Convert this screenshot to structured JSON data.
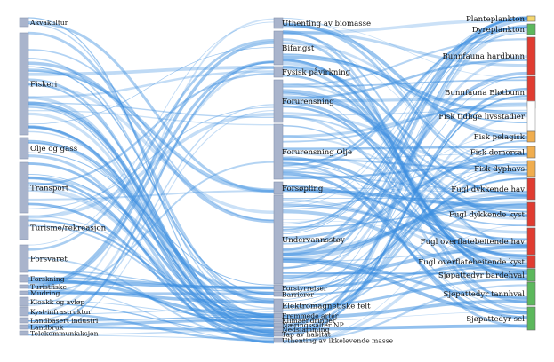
{
  "sources": [
    {
      "label": "Akvakultur",
      "color": "#a9b4cc"
    },
    {
      "label": "Fiskeri",
      "color": "#a9b4cc"
    },
    {
      "label": "Olje og gass",
      "color": "#a9b4cc"
    },
    {
      "label": "Transport",
      "color": "#a9b4cc"
    },
    {
      "label": "Turisme/rekreasjon",
      "color": "#a9b4cc"
    },
    {
      "label": "Forsvaret",
      "color": "#a9b4cc"
    },
    {
      "label": "Forskning",
      "color": "#a9b4cc"
    },
    {
      "label": "Turistfiske",
      "color": "#a9b4cc"
    },
    {
      "label": "Mudring",
      "color": "#a9b4cc"
    },
    {
      "label": "Kloakk og avløp",
      "color": "#a9b4cc"
    },
    {
      "label": "Kyst-infrastruktur",
      "color": "#a9b4cc"
    },
    {
      "label": "Landbasert industri",
      "color": "#a9b4cc"
    },
    {
      "label": "Landbruk",
      "color": "#a9b4cc"
    },
    {
      "label": "Telekommuniaksjon",
      "color": "#a9b4cc"
    }
  ],
  "pressures": [
    {
      "label": "Uthenting av biomasse",
      "color": "#a9b4cc"
    },
    {
      "label": "Bifangst",
      "color": "#a9b4cc"
    },
    {
      "label": "Fysisk påvirkning",
      "color": "#a9b4cc"
    },
    {
      "label": "Forurensning",
      "color": "#a9b4cc"
    },
    {
      "label": "Forurensning Olje",
      "color": "#a9b4cc"
    },
    {
      "label": "Forsøpling",
      "color": "#a9b4cc"
    },
    {
      "label": "Undervannsstøy",
      "color": "#a9b4cc"
    },
    {
      "label": "Forstyrrelser",
      "color": "#a9b4cc"
    },
    {
      "label": "Barrierer",
      "color": "#a9b4cc"
    },
    {
      "label": "Elektromagnetiske felt",
      "color": "#a9b4cc"
    },
    {
      "label": "Fremmede arter",
      "color": "#a9b4cc"
    },
    {
      "label": "Klimaendringer",
      "color": "#a9b4cc"
    },
    {
      "label": "Næringssalter NP",
      "color": "#a9b4cc"
    },
    {
      "label": "Nedslamming",
      "color": "#a9b4cc"
    },
    {
      "label": "Tap av habitat",
      "color": "#a9b4cc"
    },
    {
      "label": "Uthenting av ikkelevende masse",
      "color": "#a9b4cc"
    }
  ],
  "receptors": [
    {
      "label": "Planteplankton",
      "color": "#f5d76e"
    },
    {
      "label": "Dyreplankton",
      "color": "#5cb85c"
    },
    {
      "label": "Bunnfauna hardbunn",
      "color": "#e03c31"
    },
    {
      "label": "Bunnfauna Bløtbunn",
      "color": "#e03c31"
    },
    {
      "label": "Fisk tidlige livsstadier",
      "color": "#ffffff"
    },
    {
      "label": "Fisk pelagisk",
      "color": "#f0ad4e"
    },
    {
      "label": "Fisk demersal",
      "color": "#f0ad4e"
    },
    {
      "label": "Fisk dyphavs",
      "color": "#f0ad4e"
    },
    {
      "label": "Fugl dykkende hav",
      "color": "#e03c31"
    },
    {
      "label": "Fugl dykkende kyst",
      "color": "#e03c31"
    },
    {
      "label": "Fugl overflatebeitende hav",
      "color": "#e03c31"
    },
    {
      "label": "Fugl overflatebeitende kyst",
      "color": "#e03c31"
    },
    {
      "label": "Sjøpattedyr bardehval",
      "color": "#5cb85c"
    },
    {
      "label": "Sjøpattedyr tannhval",
      "color": "#5cb85c"
    },
    {
      "label": "Sjøpattedyr sel",
      "color": "#5cb85c"
    }
  ],
  "link_color": "#3d8fe0"
}
